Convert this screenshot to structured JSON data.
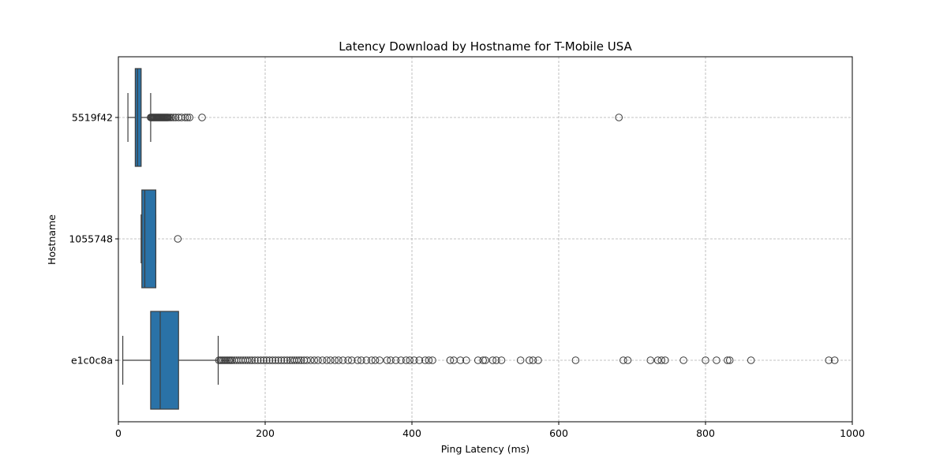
{
  "chart_data": {
    "type": "boxplot",
    "title": "Latency Download by Hostname for T-Mobile USA",
    "xlabel": "Ping Latency (ms)",
    "ylabel": "Hostname",
    "xlim": [
      0,
      1000
    ],
    "xticks": [
      0,
      200,
      400,
      600,
      800,
      1000
    ],
    "grid": true,
    "box_color": "#2a72a7",
    "categories": [
      "5519f42",
      "1055748",
      "e1c0c8a"
    ],
    "boxes": [
      {
        "name": "5519f42",
        "whisker_low": 13,
        "q1": 23,
        "median": 26,
        "q3": 31,
        "whisker_high": 44,
        "outliers": [
          44,
          45,
          46,
          47,
          48,
          49,
          50,
          51,
          52,
          53,
          54,
          55,
          56,
          57,
          58,
          59,
          60,
          61,
          62,
          63,
          64,
          65,
          66,
          67,
          68,
          70,
          72,
          75,
          78,
          82,
          86,
          91,
          94,
          97,
          114,
          682
        ]
      },
      {
        "name": "1055748",
        "whisker_low": 31,
        "q1": 32,
        "median": 36,
        "q3": 51,
        "whisker_high": 51,
        "outliers": [
          81
        ]
      },
      {
        "name": "e1c0c8a",
        "whisker_low": 6,
        "q1": 44,
        "median": 57,
        "q3": 82,
        "whisker_high": 136,
        "outliers": [
          137,
          139,
          141,
          143,
          145,
          147,
          149,
          151,
          153,
          155,
          158,
          161,
          164,
          167,
          170,
          173,
          176,
          179,
          182,
          186,
          190,
          194,
          198,
          202,
          206,
          210,
          214,
          218,
          222,
          226,
          230,
          234,
          237,
          240,
          243,
          246,
          249,
          253,
          257,
          262,
          267,
          272,
          278,
          284,
          289,
          295,
          300,
          306,
          313,
          318,
          326,
          331,
          338,
          345,
          350,
          356,
          366,
          371,
          378,
          385,
          392,
          397,
          403,
          410,
          418,
          423,
          428,
          452,
          457,
          466,
          474,
          490,
          497,
          500,
          510,
          515,
          522,
          548,
          560,
          565,
          572,
          623,
          688,
          694,
          725,
          735,
          740,
          745,
          770,
          800,
          815,
          830,
          833,
          862,
          968,
          976
        ]
      }
    ]
  }
}
